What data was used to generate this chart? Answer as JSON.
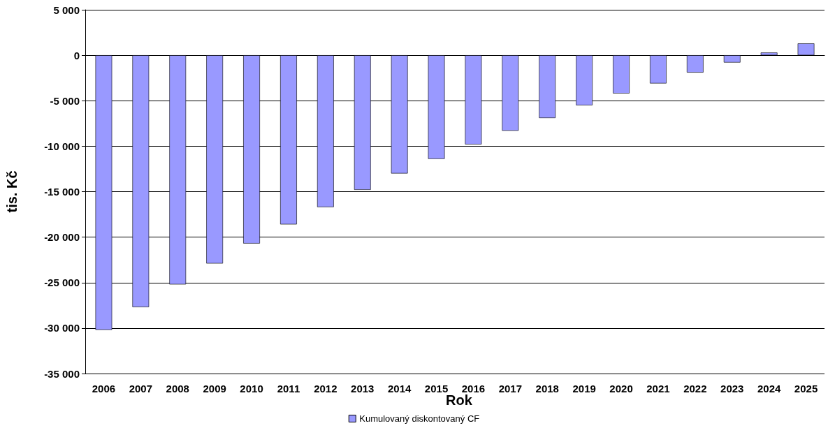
{
  "chart_data": {
    "type": "bar",
    "xlabel": "Rok",
    "ylabel": "tis. Kč",
    "categories": [
      "2006",
      "2007",
      "2008",
      "2009",
      "2010",
      "2011",
      "2012",
      "2013",
      "2014",
      "2015",
      "2016",
      "2017",
      "2018",
      "2019",
      "2020",
      "2021",
      "2022",
      "2023",
      "2024",
      "2025"
    ],
    "series": [
      {
        "name": "Kumulovaný diskontovaný CF",
        "color": "#9999ff",
        "values": [
          -30200,
          -27700,
          -25200,
          -22900,
          -20700,
          -18600,
          -16700,
          -14800,
          -13000,
          -11400,
          -9800,
          -8300,
          -6900,
          -5500,
          -4200,
          -3100,
          -1900,
          -800,
          300,
          1300
        ]
      }
    ],
    "ylim": [
      -35000,
      5000
    ],
    "yticks": [
      {
        "value": -35000,
        "label": "-35 000"
      },
      {
        "value": -30000,
        "label": "-30 000"
      },
      {
        "value": -25000,
        "label": "-25 000"
      },
      {
        "value": -20000,
        "label": "-20 000"
      },
      {
        "value": -15000,
        "label": "-15 000"
      },
      {
        "value": -10000,
        "label": "-10 000"
      },
      {
        "value": -5000,
        "label": "-5 000"
      },
      {
        "value": 0,
        "label": "0"
      },
      {
        "value": 5000,
        "label": "5 000"
      }
    ],
    "grid": "y",
    "legend": "bottom"
  }
}
